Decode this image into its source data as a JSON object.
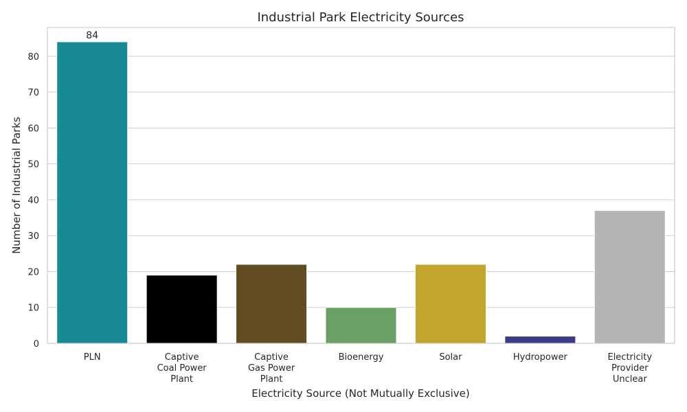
{
  "chart_data": {
    "type": "bar",
    "title": "Industrial Park Electricity Sources",
    "xlabel": "Electricity Source (Not Mutually Exclusive)",
    "ylabel": "Number of Industrial Parks",
    "categories": [
      [
        "PLN"
      ],
      [
        "Captive",
        "Coal Power",
        "Plant"
      ],
      [
        "Captive",
        "Gas Power",
        "Plant"
      ],
      [
        "Bioenergy"
      ],
      [
        "Solar"
      ],
      [
        "Hydropower"
      ],
      [
        "Electricity",
        "Provider",
        "Unclear"
      ]
    ],
    "values": [
      84,
      19,
      22,
      10,
      22,
      2,
      37
    ],
    "colors": [
      "#178a96",
      "#000000",
      "#624c22",
      "#68a068",
      "#c2a62b",
      "#3c3b84",
      "#b4b4b4"
    ],
    "data_labels": [
      {
        "index": 0,
        "text": "84"
      }
    ],
    "ylim": [
      0,
      88
    ],
    "yticks": [
      0,
      10,
      20,
      30,
      40,
      50,
      60,
      70,
      80
    ],
    "grid": "y",
    "legend": "none"
  }
}
